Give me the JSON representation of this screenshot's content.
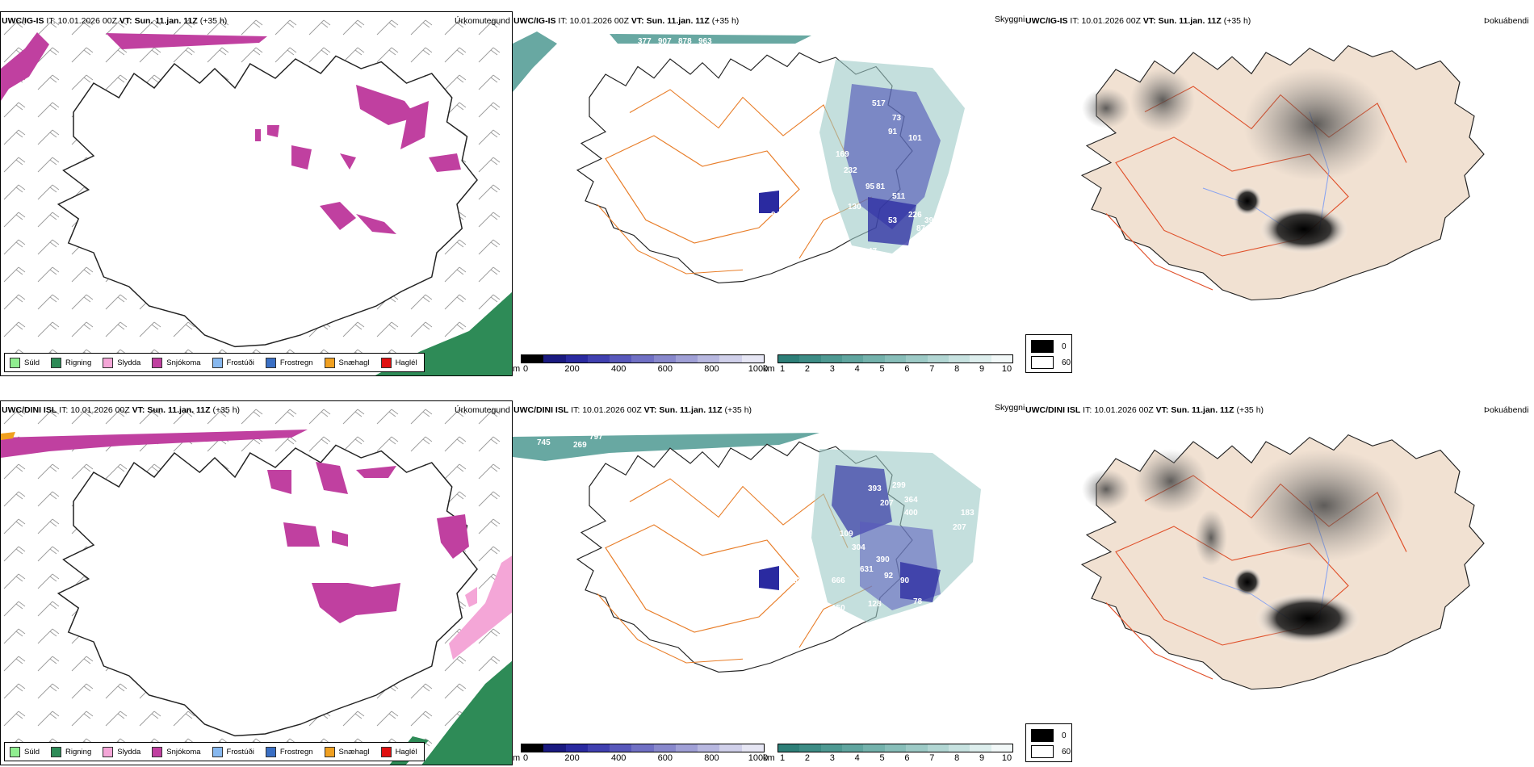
{
  "rows": [
    {
      "model": "UWC/IG-IS",
      "it_label": "IT:",
      "it_value": "10.01.2026 00Z",
      "vt_label": "VT:",
      "vt_value": "Sun. 11.jan. 11Z",
      "lead": "(+35 h)",
      "cloud_labels": [
        "517",
        "73",
        "91",
        "101",
        "169",
        "232",
        "95",
        "81",
        "511",
        "226",
        "94",
        "47",
        "87",
        "53",
        "39",
        "130",
        "377",
        "907",
        "878",
        "963"
      ]
    },
    {
      "model": "UWC/DINI ISL",
      "it_label": "IT:",
      "it_value": "10.01.2026 00Z",
      "vt_label": "VT:",
      "vt_value": "Sun. 11.jan. 11Z",
      "lead": "(+35 h)",
      "cloud_labels": [
        "393",
        "299",
        "207",
        "364",
        "400",
        "109",
        "304",
        "390",
        "631",
        "92",
        "150",
        "128",
        "90",
        "78",
        "428",
        "666",
        "107",
        "745",
        "269",
        "797",
        "183",
        "207"
      ]
    }
  ],
  "panels": {
    "precip_title": "Úrkomutegund",
    "cloud_title": "Skyggni",
    "fog_title": "Þokuábendi"
  },
  "precip_legend": [
    {
      "label": "Súld",
      "color": "#90ee90"
    },
    {
      "label": "Rigning",
      "color": "#2e8b57"
    },
    {
      "label": "Slydda",
      "color": "#f4a6d7"
    },
    {
      "label": "Snjókoma",
      "color": "#c040a0"
    },
    {
      "label": "Frostúði",
      "color": "#87b8ef"
    },
    {
      "label": "Frostregn",
      "color": "#3a6fc4"
    },
    {
      "label": "Snæhagl",
      "color": "#f0a020"
    },
    {
      "label": "Haglél",
      "color": "#e01010"
    }
  ],
  "cloud_base_scale": {
    "unit": "m",
    "ticks": [
      "0",
      "200",
      "400",
      "600",
      "800",
      "1000"
    ],
    "colors": [
      "#000000",
      "#1a1a80",
      "#2a2aa0",
      "#4040b0",
      "#5858bb",
      "#7070c4",
      "#8888cc",
      "#a0a0d6",
      "#b8b8e0",
      "#d0d0ea",
      "#e6e6f4"
    ]
  },
  "visibility_scale": {
    "unit": "km",
    "ticks": [
      "1",
      "2",
      "3",
      "4",
      "5",
      "6",
      "7",
      "8",
      "9",
      "10"
    ],
    "colors": [
      "#2e7f78",
      "#3d8c85",
      "#4e9992",
      "#60a59f",
      "#74b2ac",
      "#88beb9",
      "#9dcac6",
      "#b2d6d3",
      "#c7e2e0",
      "#ddeeed",
      "#f2f8f8"
    ]
  },
  "fog_scale": {
    "low": "0",
    "high": "60"
  }
}
